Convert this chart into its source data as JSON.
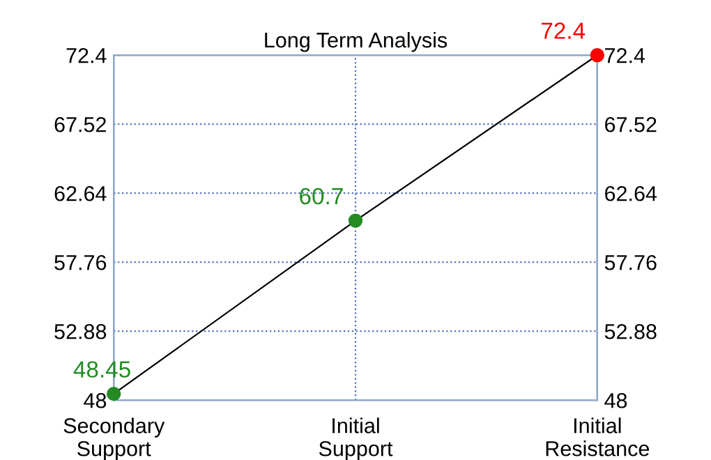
{
  "chart_data": {
    "type": "line",
    "title": "Long Term Analysis",
    "categories": [
      "Secondary\nSupport",
      "Initial\nSupport",
      "Initial\nResistance"
    ],
    "series": [
      {
        "color": "#000000",
        "colors": [
          "#228b22",
          "#228b22",
          "#ff0000"
        ],
        "values": [
          48.45,
          60.7,
          72.4
        ]
      }
    ],
    "ylim": [
      48,
      72.4
    ],
    "yticks": [
      48,
      52.88,
      57.76,
      62.64,
      67.52,
      72.4
    ],
    "y2lim": [
      48,
      72.4
    ],
    "y2ticks": [
      48,
      52.88,
      57.76,
      62.64,
      67.52,
      72.4
    ],
    "grid": true,
    "marker": "circle",
    "line_style": "solid",
    "data_labels": true
  }
}
